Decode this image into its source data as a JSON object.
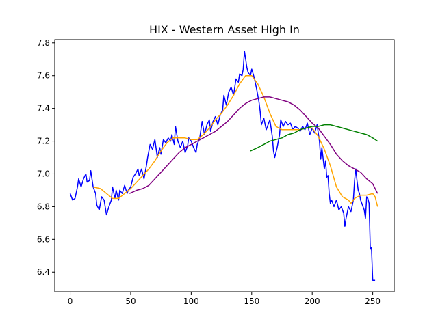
{
  "chart_data": {
    "type": "line",
    "title": "HIX - Western Asset High In",
    "xlabel": "",
    "ylabel": "",
    "xlim": [
      -12.75,
      267.75
    ],
    "ylim": [
      6.28,
      7.82
    ],
    "xticks": [
      0,
      50,
      100,
      150,
      200,
      250
    ],
    "yticks": [
      6.4,
      6.6,
      6.8,
      7.0,
      7.2,
      7.4,
      7.6,
      7.8
    ],
    "ytick_labels": [
      "6.4",
      "6.6",
      "6.8",
      "7.0",
      "7.2",
      "7.4",
      "7.6",
      "7.8"
    ],
    "grid": false,
    "legend": "none",
    "series": [
      {
        "color": "#0000ff",
        "points": [
          [
            0,
            6.88
          ],
          [
            2,
            6.84
          ],
          [
            4,
            6.85
          ],
          [
            6,
            6.92
          ],
          [
            7,
            6.97
          ],
          [
            9,
            6.92
          ],
          [
            11,
            6.97
          ],
          [
            13,
            7.0
          ],
          [
            14,
            6.95
          ],
          [
            16,
            6.96
          ],
          [
            17,
            7.02
          ],
          [
            19,
            6.92
          ],
          [
            21,
            6.88
          ],
          [
            22,
            6.81
          ],
          [
            24,
            6.78
          ],
          [
            26,
            6.86
          ],
          [
            28,
            6.84
          ],
          [
            30,
            6.75
          ],
          [
            32,
            6.8
          ],
          [
            34,
            6.84
          ],
          [
            35,
            6.92
          ],
          [
            37,
            6.85
          ],
          [
            38,
            6.9
          ],
          [
            40,
            6.84
          ],
          [
            41,
            6.9
          ],
          [
            43,
            6.88
          ],
          [
            45,
            6.93
          ],
          [
            47,
            6.88
          ],
          [
            48,
            6.9
          ],
          [
            50,
            6.92
          ],
          [
            52,
            6.98
          ],
          [
            54,
            7.0
          ],
          [
            56,
            7.03
          ],
          [
            57,
            6.99
          ],
          [
            59,
            7.03
          ],
          [
            61,
            6.97
          ],
          [
            63,
            7.05
          ],
          [
            64,
            7.1
          ],
          [
            66,
            7.18
          ],
          [
            68,
            7.15
          ],
          [
            70,
            7.21
          ],
          [
            72,
            7.1
          ],
          [
            74,
            7.16
          ],
          [
            75,
            7.12
          ],
          [
            77,
            7.21
          ],
          [
            79,
            7.19
          ],
          [
            81,
            7.22
          ],
          [
            83,
            7.2
          ],
          [
            84,
            7.24
          ],
          [
            86,
            7.18
          ],
          [
            87,
            7.29
          ],
          [
            89,
            7.2
          ],
          [
            91,
            7.16
          ],
          [
            93,
            7.2
          ],
          [
            95,
            7.13
          ],
          [
            97,
            7.17
          ],
          [
            98,
            7.22
          ],
          [
            100,
            7.2
          ],
          [
            102,
            7.16
          ],
          [
            104,
            7.13
          ],
          [
            105,
            7.18
          ],
          [
            107,
            7.22
          ],
          [
            109,
            7.32
          ],
          [
            111,
            7.24
          ],
          [
            113,
            7.3
          ],
          [
            115,
            7.33
          ],
          [
            116,
            7.26
          ],
          [
            118,
            7.32
          ],
          [
            120,
            7.35
          ],
          [
            122,
            7.3
          ],
          [
            124,
            7.36
          ],
          [
            126,
            7.39
          ],
          [
            127,
            7.48
          ],
          [
            129,
            7.42
          ],
          [
            131,
            7.5
          ],
          [
            133,
            7.53
          ],
          [
            135,
            7.48
          ],
          [
            137,
            7.58
          ],
          [
            139,
            7.56
          ],
          [
            140,
            7.61
          ],
          [
            142,
            7.6
          ],
          [
            143,
            7.64
          ],
          [
            144,
            7.75
          ],
          [
            146,
            7.65
          ],
          [
            147,
            7.62
          ],
          [
            149,
            7.6
          ],
          [
            150,
            7.64
          ],
          [
            152,
            7.59
          ],
          [
            154,
            7.52
          ],
          [
            156,
            7.44
          ],
          [
            157,
            7.38
          ],
          [
            158,
            7.3
          ],
          [
            160,
            7.34
          ],
          [
            162,
            7.27
          ],
          [
            163,
            7.29
          ],
          [
            165,
            7.33
          ],
          [
            166,
            7.28
          ],
          [
            167,
            7.23
          ],
          [
            168,
            7.14
          ],
          [
            169,
            7.1
          ],
          [
            171,
            7.16
          ],
          [
            173,
            7.24
          ],
          [
            174,
            7.33
          ],
          [
            176,
            7.29
          ],
          [
            178,
            7.32
          ],
          [
            180,
            7.3
          ],
          [
            182,
            7.31
          ],
          [
            184,
            7.27
          ],
          [
            186,
            7.29
          ],
          [
            188,
            7.28
          ],
          [
            190,
            7.26
          ],
          [
            192,
            7.29
          ],
          [
            194,
            7.27
          ],
          [
            196,
            7.31
          ],
          [
            198,
            7.24
          ],
          [
            200,
            7.28
          ],
          [
            202,
            7.25
          ],
          [
            204,
            7.3
          ],
          [
            206,
            7.2
          ],
          [
            207,
            7.09
          ],
          [
            208,
            7.16
          ],
          [
            210,
            7.03
          ],
          [
            211,
            7.08
          ],
          [
            212,
            6.98
          ],
          [
            213,
            6.99
          ],
          [
            214,
            6.88
          ],
          [
            215,
            6.82
          ],
          [
            216,
            6.84
          ],
          [
            218,
            6.8
          ],
          [
            220,
            6.84
          ],
          [
            222,
            6.78
          ],
          [
            224,
            6.8
          ],
          [
            226,
            6.76
          ],
          [
            227,
            6.68
          ],
          [
            228,
            6.73
          ],
          [
            230,
            6.8
          ],
          [
            232,
            6.77
          ],
          [
            234,
            6.84
          ],
          [
            235,
            6.96
          ],
          [
            236,
            7.03
          ],
          [
            237,
            6.96
          ],
          [
            238,
            6.9
          ],
          [
            239,
            6.88
          ],
          [
            240,
            6.84
          ],
          [
            241,
            6.82
          ],
          [
            243,
            6.78
          ],
          [
            244,
            6.73
          ],
          [
            245,
            6.86
          ],
          [
            246,
            6.85
          ],
          [
            247,
            6.82
          ],
          [
            248,
            6.54
          ],
          [
            249,
            6.55
          ],
          [
            250,
            6.35
          ],
          [
            252,
            6.35
          ]
        ]
      },
      {
        "color": "#ffa500",
        "points": [
          [
            19,
            6.92
          ],
          [
            25,
            6.91
          ],
          [
            30,
            6.88
          ],
          [
            35,
            6.85
          ],
          [
            40,
            6.85
          ],
          [
            45,
            6.88
          ],
          [
            50,
            6.91
          ],
          [
            55,
            6.95
          ],
          [
            60,
            6.99
          ],
          [
            65,
            7.03
          ],
          [
            70,
            7.08
          ],
          [
            75,
            7.14
          ],
          [
            80,
            7.19
          ],
          [
            85,
            7.22
          ],
          [
            90,
            7.22
          ],
          [
            95,
            7.22
          ],
          [
            100,
            7.21
          ],
          [
            105,
            7.21
          ],
          [
            110,
            7.24
          ],
          [
            115,
            7.28
          ],
          [
            120,
            7.33
          ],
          [
            125,
            7.37
          ],
          [
            130,
            7.42
          ],
          [
            135,
            7.48
          ],
          [
            140,
            7.55
          ],
          [
            145,
            7.6
          ],
          [
            150,
            7.6
          ],
          [
            155,
            7.55
          ],
          [
            160,
            7.47
          ],
          [
            165,
            7.37
          ],
          [
            170,
            7.29
          ],
          [
            175,
            7.27
          ],
          [
            180,
            7.27
          ],
          [
            185,
            7.27
          ],
          [
            190,
            7.27
          ],
          [
            195,
            7.28
          ],
          [
            200,
            7.28
          ],
          [
            205,
            7.23
          ],
          [
            210,
            7.15
          ],
          [
            215,
            7.05
          ],
          [
            220,
            6.92
          ],
          [
            225,
            6.86
          ],
          [
            230,
            6.84
          ],
          [
            232,
            6.82
          ],
          [
            235,
            6.85
          ],
          [
            240,
            6.87
          ],
          [
            245,
            6.87
          ],
          [
            250,
            6.88
          ],
          [
            252,
            6.86
          ],
          [
            254,
            6.8
          ]
        ]
      },
      {
        "color": "#800080",
        "points": [
          [
            49,
            6.88
          ],
          [
            55,
            6.9
          ],
          [
            60,
            6.91
          ],
          [
            65,
            6.93
          ],
          [
            70,
            6.97
          ],
          [
            75,
            7.01
          ],
          [
            80,
            7.05
          ],
          [
            85,
            7.09
          ],
          [
            90,
            7.13
          ],
          [
            95,
            7.16
          ],
          [
            100,
            7.18
          ],
          [
            105,
            7.2
          ],
          [
            110,
            7.22
          ],
          [
            115,
            7.24
          ],
          [
            120,
            7.26
          ],
          [
            125,
            7.29
          ],
          [
            130,
            7.32
          ],
          [
            135,
            7.36
          ],
          [
            140,
            7.4
          ],
          [
            145,
            7.43
          ],
          [
            150,
            7.45
          ],
          [
            155,
            7.46
          ],
          [
            160,
            7.47
          ],
          [
            165,
            7.47
          ],
          [
            170,
            7.46
          ],
          [
            175,
            7.45
          ],
          [
            180,
            7.44
          ],
          [
            185,
            7.42
          ],
          [
            190,
            7.39
          ],
          [
            195,
            7.35
          ],
          [
            200,
            7.31
          ],
          [
            205,
            7.28
          ],
          [
            210,
            7.23
          ],
          [
            215,
            7.18
          ],
          [
            220,
            7.12
          ],
          [
            225,
            7.08
          ],
          [
            230,
            7.05
          ],
          [
            235,
            7.03
          ],
          [
            240,
            7.01
          ],
          [
            245,
            6.97
          ],
          [
            250,
            6.94
          ],
          [
            254,
            6.88
          ]
        ]
      },
      {
        "color": "#008000",
        "points": [
          [
            149,
            7.14
          ],
          [
            155,
            7.16
          ],
          [
            160,
            7.18
          ],
          [
            165,
            7.2
          ],
          [
            170,
            7.21
          ],
          [
            175,
            7.22
          ],
          [
            180,
            7.24
          ],
          [
            185,
            7.25
          ],
          [
            190,
            7.27
          ],
          [
            195,
            7.28
          ],
          [
            200,
            7.29
          ],
          [
            205,
            7.29
          ],
          [
            210,
            7.3
          ],
          [
            215,
            7.3
          ],
          [
            220,
            7.29
          ],
          [
            225,
            7.28
          ],
          [
            230,
            7.27
          ],
          [
            235,
            7.26
          ],
          [
            240,
            7.25
          ],
          [
            245,
            7.24
          ],
          [
            250,
            7.22
          ],
          [
            254,
            7.2
          ]
        ]
      }
    ]
  }
}
